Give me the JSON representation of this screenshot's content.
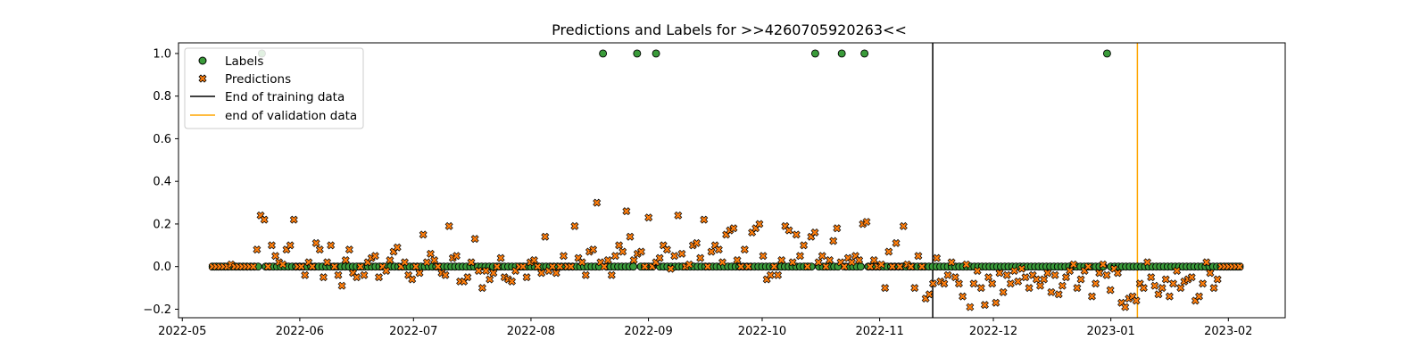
{
  "chart_data": {
    "type": "scatter",
    "title": "Predictions and Labels for >>4260705920263<<",
    "xlabel": "",
    "ylabel": "",
    "xlim": [
      "2022-04-30",
      "2023-02-16"
    ],
    "ylim": [
      -0.24,
      1.05
    ],
    "x_ticks": [
      "2022-05",
      "2022-06",
      "2022-07",
      "2022-08",
      "2022-09",
      "2022-10",
      "2022-11",
      "2022-12",
      "2023-01",
      "2023-02"
    ],
    "y_ticks": [
      -0.2,
      0.0,
      0.2,
      0.4,
      0.6,
      0.8,
      1.0
    ],
    "y_tick_labels": [
      "−0.2",
      "0.0",
      "0.2",
      "0.4",
      "0.6",
      "0.8",
      "1.0"
    ],
    "grid": false,
    "legend_position": "upper-left",
    "colors": {
      "labels_fill": "#3a9b3a",
      "predictions_fill": "#ff7f0e",
      "marker_edge": "#000000",
      "training_line": "#000000",
      "validation_line": "#ffa500"
    },
    "series": [
      {
        "name": "Labels",
        "marker": "circle",
        "x_start": "2022-05-09",
        "x_end": "2023-02-04",
        "baseline": 0.0,
        "ones": [
          "2022-05-22",
          "2022-08-20",
          "2022-08-29",
          "2022-09-03",
          "2022-10-15",
          "2022-10-22",
          "2022-10-28",
          "2022-12-31"
        ]
      },
      {
        "name": "Predictions",
        "marker": "x",
        "x_start": "2022-05-09",
        "x_end": "2023-02-04",
        "values": [
          0.0,
          0.0,
          0.0,
          0.0,
          0.0,
          0.01,
          0.0,
          0.0,
          0.0,
          0.0,
          0.0,
          0.0,
          0.08,
          0.24,
          0.22,
          0.0,
          0.1,
          0.05,
          0.02,
          0.01,
          0.08,
          0.1,
          0.22,
          0.0,
          0.0,
          -0.04,
          0.02,
          0.0,
          0.11,
          0.08,
          -0.05,
          0.02,
          0.1,
          0.0,
          -0.04,
          -0.09,
          0.03,
          0.08,
          -0.03,
          -0.05,
          0.0,
          -0.04,
          0.02,
          0.04,
          0.05,
          -0.05,
          0.0,
          -0.02,
          0.03,
          0.07,
          0.09,
          0.0,
          0.02,
          -0.04,
          -0.06,
          0.0,
          -0.03,
          0.15,
          0.02,
          0.06,
          0.03,
          0.0,
          -0.03,
          -0.04,
          0.19,
          0.04,
          0.05,
          -0.07,
          -0.07,
          -0.05,
          0.02,
          0.13,
          -0.02,
          -0.1,
          -0.02,
          -0.06,
          -0.03,
          0.0,
          0.04,
          -0.05,
          -0.06,
          -0.07,
          -0.02,
          0.0,
          0.0,
          -0.05,
          0.02,
          0.03,
          0.0,
          -0.03,
          0.14,
          -0.02,
          0.0,
          -0.03,
          0.0,
          0.05,
          0.0,
          0.0,
          0.19,
          0.04,
          0.02,
          -0.04,
          0.07,
          0.08,
          0.3,
          0.02,
          0.0,
          0.03,
          -0.04,
          0.05,
          0.1,
          0.07,
          0.26,
          0.14,
          0.03,
          0.06,
          0.07,
          0.0,
          0.23,
          0.0,
          0.02,
          0.04,
          0.1,
          0.08,
          -0.01,
          0.05,
          0.24,
          0.06,
          0.0,
          0.01,
          0.1,
          0.11,
          0.04,
          0.22,
          0.0,
          0.07,
          0.1,
          0.08,
          0.02,
          0.15,
          0.17,
          0.18,
          0.03,
          0.0,
          0.08,
          0.0,
          0.16,
          0.18,
          0.2,
          0.05,
          -0.06,
          -0.04,
          0.0,
          -0.04,
          0.03,
          0.19,
          0.17,
          0.02,
          0.15,
          0.05,
          0.1,
          0.0,
          0.14,
          0.16,
          0.02,
          0.05,
          0.0,
          0.03,
          0.12,
          0.18,
          0.02,
          0.0,
          0.04,
          0.02,
          0.05,
          0.03,
          0.2,
          0.21,
          0.0,
          0.03,
          0.0,
          0.01,
          -0.1,
          0.07,
          0.0,
          0.11,
          0.0,
          0.19,
          0.01,
          0.0,
          -0.1,
          0.05,
          0.0,
          -0.15,
          -0.13,
          -0.08,
          0.04,
          -0.07,
          -0.08,
          -0.04,
          0.02,
          -0.05,
          -0.08,
          -0.14,
          0.01,
          -0.19,
          -0.08,
          -0.02,
          -0.1,
          -0.18,
          -0.05,
          -0.08,
          -0.17,
          -0.03,
          -0.12,
          -0.04,
          -0.08,
          -0.02,
          -0.07,
          -0.01,
          -0.05,
          -0.1,
          -0.04,
          -0.06,
          -0.09,
          -0.06,
          -0.03,
          -0.12,
          -0.04,
          -0.13,
          -0.09,
          -0.05,
          -0.02,
          0.01,
          -0.1,
          -0.06,
          -0.02,
          0.0,
          -0.14,
          -0.08,
          -0.03,
          0.01,
          -0.04,
          -0.11,
          -0.01,
          -0.03,
          -0.17,
          -0.19,
          -0.15,
          -0.14,
          -0.16,
          -0.08,
          -0.1,
          0.02,
          -0.05,
          -0.09,
          -0.13,
          -0.1,
          -0.06,
          -0.14,
          -0.08,
          -0.02,
          -0.1,
          -0.07,
          -0.06,
          -0.05,
          -0.16,
          -0.14,
          -0.08,
          0.02,
          -0.03,
          -0.1,
          -0.06,
          0.0,
          0.0,
          0.0,
          0.0,
          0.0,
          0.0
        ]
      }
    ],
    "vlines": [
      {
        "name": "End of training data",
        "x": "2022-11-15",
        "color": "#000000"
      },
      {
        "name": "end of validation data",
        "x": "2023-01-08",
        "color": "#ffa500"
      }
    ]
  }
}
